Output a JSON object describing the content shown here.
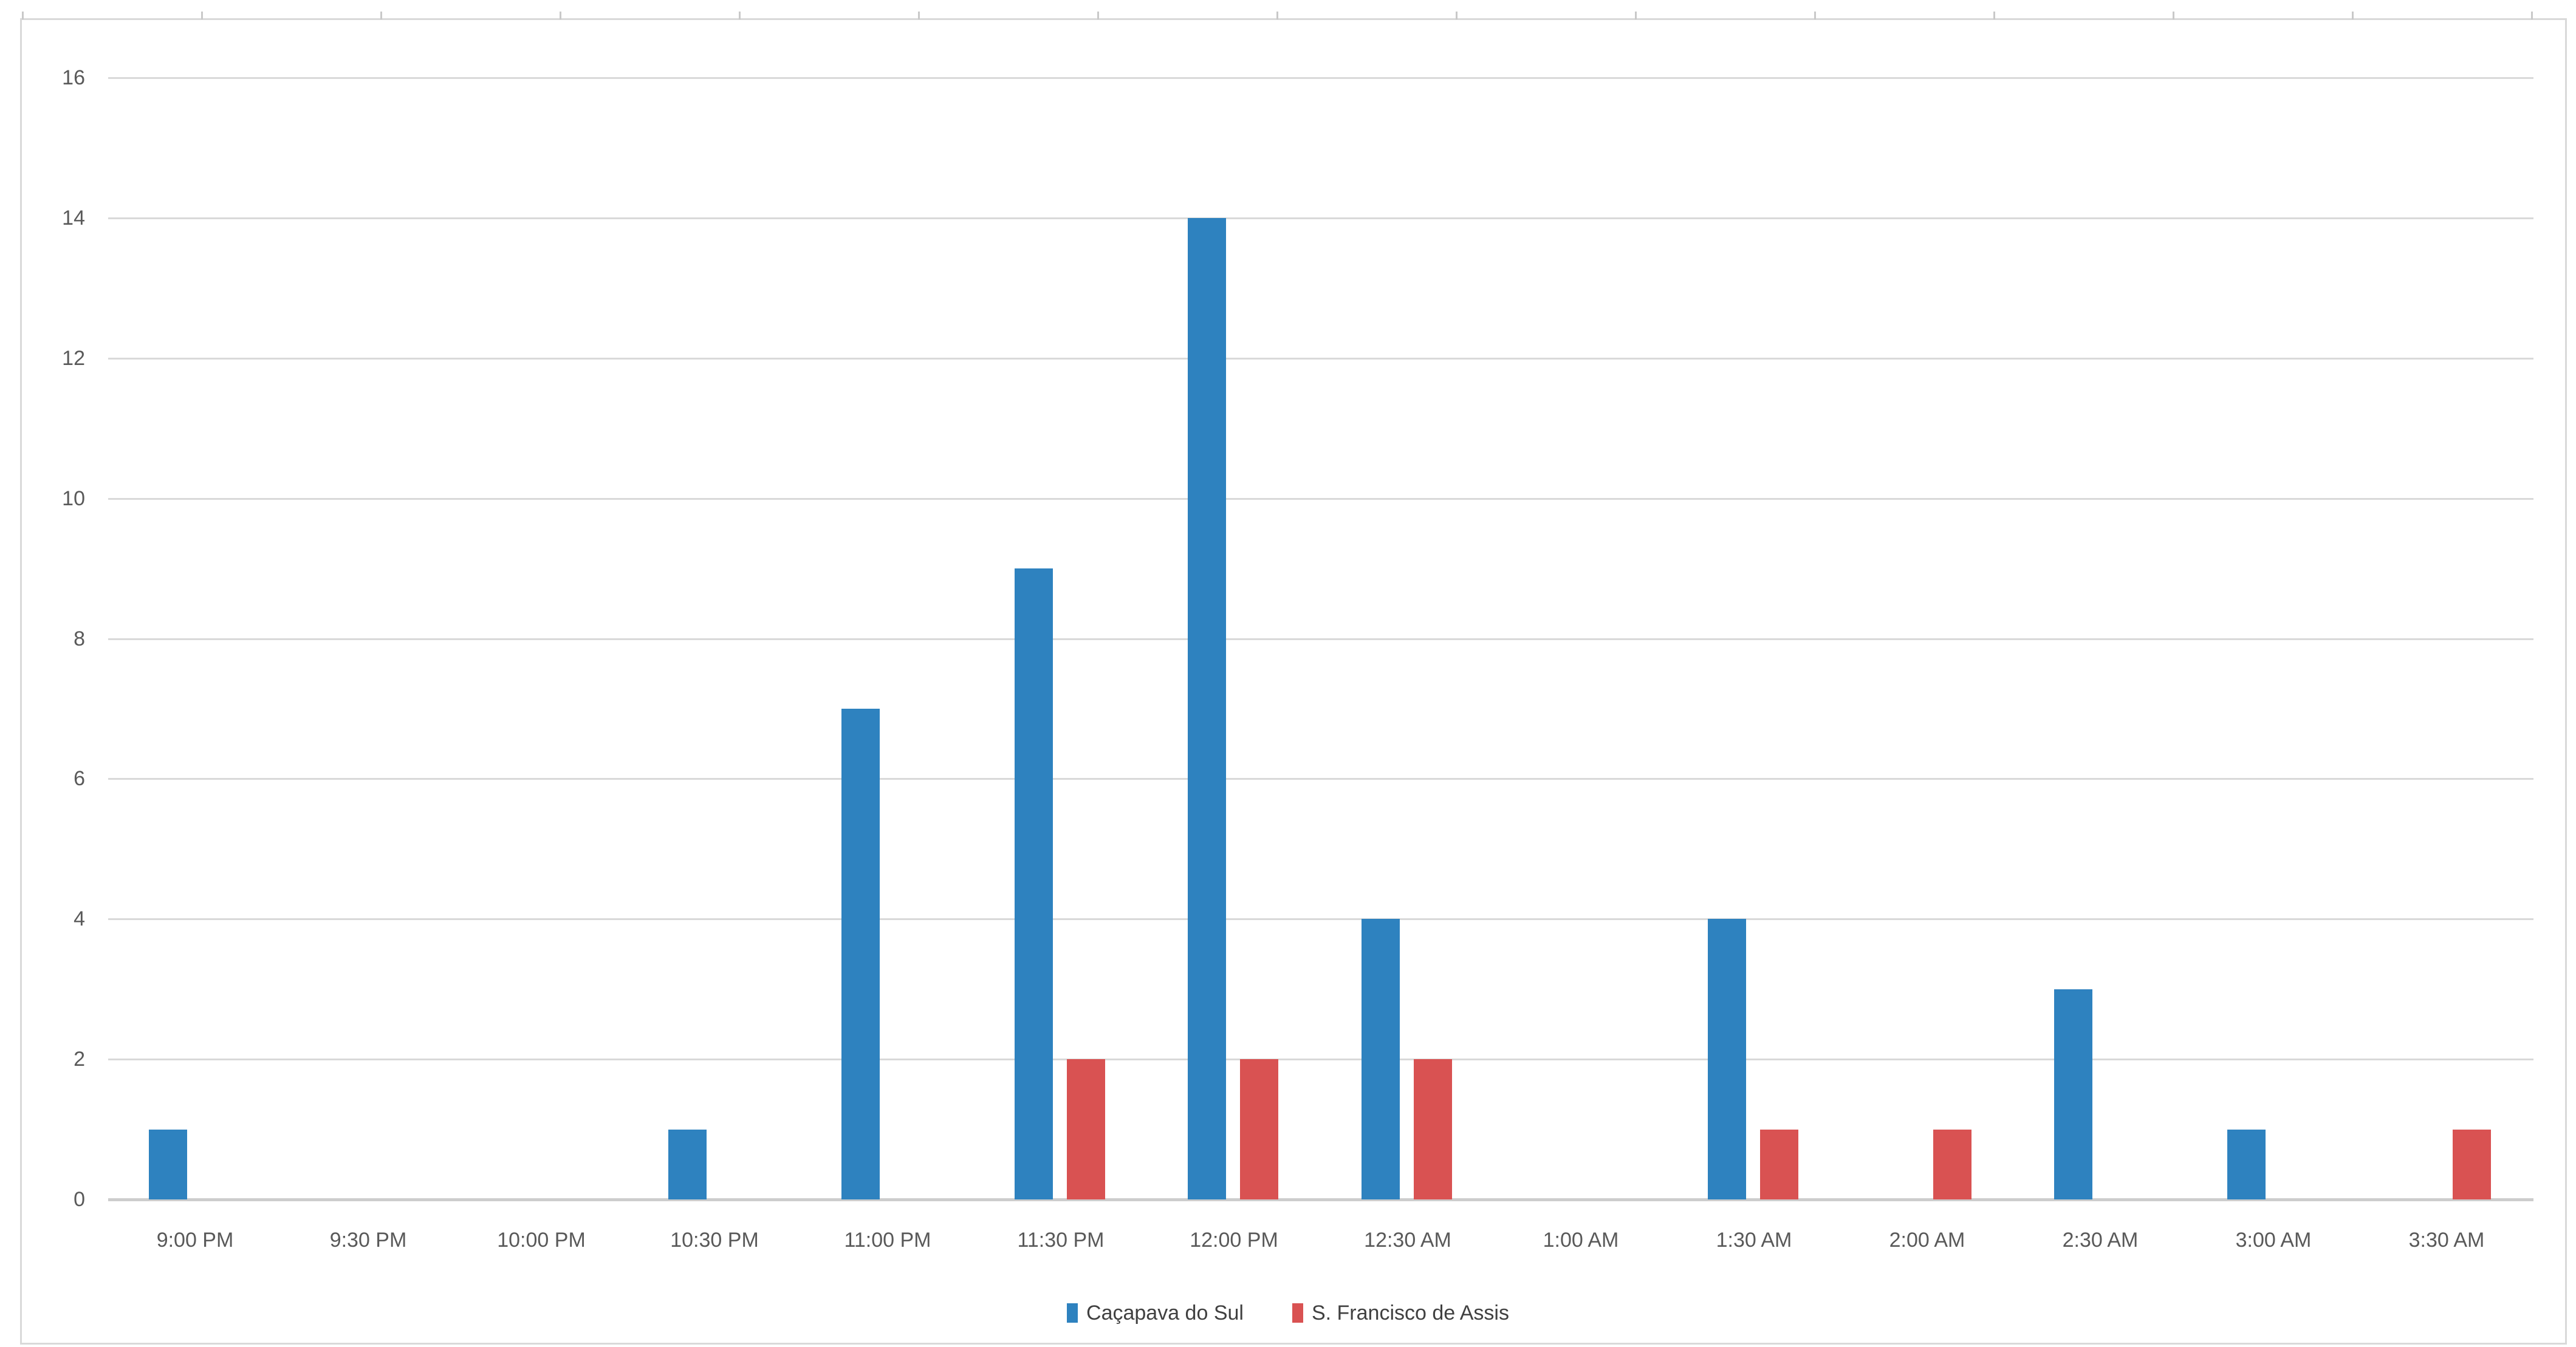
{
  "chart_data": {
    "type": "bar",
    "title": "",
    "xlabel": "",
    "ylabel": "",
    "categories": [
      "9:00 PM",
      "9:30 PM",
      "10:00 PM",
      "10:30 PM",
      "11:00 PM",
      "11:30 PM",
      "12:00 PM",
      "12:30 AM",
      "1:00 AM",
      "1:30 AM",
      "2:00 AM",
      "2:30 AM",
      "3:00 AM",
      "3:30 AM"
    ],
    "series": [
      {
        "name": "Caçapava do Sul",
        "color": "#2E82BF",
        "values": [
          1,
          0,
          0,
          1,
          7,
          9,
          14,
          4,
          0,
          4,
          0,
          3,
          1,
          0
        ]
      },
      {
        "name": "S. Francisco de Assis",
        "color": "#D95252",
        "values": [
          0,
          0,
          0,
          0,
          0,
          2,
          2,
          2,
          0,
          1,
          1,
          0,
          0,
          1
        ]
      }
    ],
    "ylim": [
      0,
      16
    ],
    "ytick_step": 2,
    "yticks": [
      "0",
      "2",
      "4",
      "6",
      "8",
      "10",
      "12",
      "14",
      "16"
    ],
    "grid": "horizontal-only",
    "legend_position": "bottom-center",
    "top_axis_ticks": true
  },
  "colors": {
    "background": "#FFFFFF",
    "gridline": "#D9D9D9",
    "zero_axis_line": "#CDCDCD",
    "chart_border": "#D9D9D9",
    "top_axis_tick": "#C9C9C9",
    "axis_tick_label": "#595959",
    "legend_text": "#404040",
    "series_blue": "#2E82BF",
    "series_red": "#D95252"
  }
}
